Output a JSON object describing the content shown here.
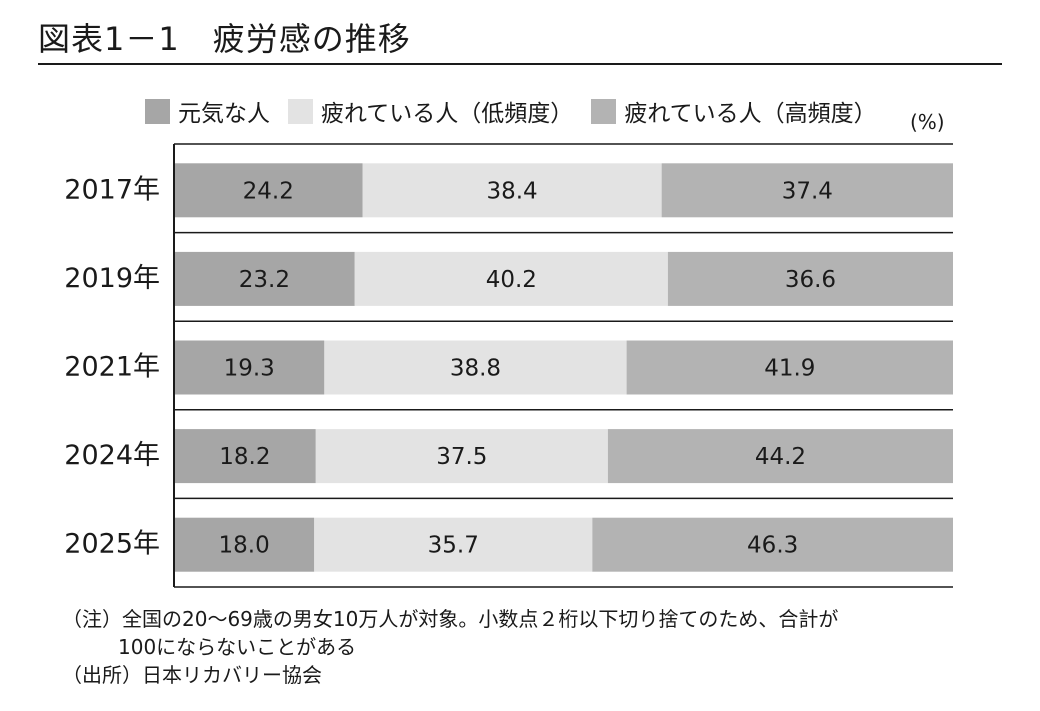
{
  "title": "図表1－1　疲労感の推移",
  "unit": "(%)",
  "colors": {
    "genki": "#a6a6a6",
    "low": "#e3e3e3",
    "high": "#b3b3b3",
    "axis": "#1a1a1a"
  },
  "chart_data": {
    "type": "bar",
    "orientation": "horizontal",
    "stacked": true,
    "percent": true,
    "categories": [
      "2017年",
      "2019年",
      "2021年",
      "2024年",
      "2025年"
    ],
    "series": [
      {
        "name": "元気な人",
        "values": [
          24.2,
          23.2,
          19.3,
          18.2,
          18.0
        ]
      },
      {
        "name": "疲れている人（低頻度）",
        "values": [
          38.4,
          40.2,
          38.8,
          37.5,
          35.7
        ]
      },
      {
        "name": "疲れている人（高頻度）",
        "values": [
          37.4,
          36.6,
          41.9,
          44.2,
          46.3
        ]
      }
    ],
    "xlim": [
      0,
      100
    ],
    "legend_position": "top",
    "grid": false
  },
  "notes": {
    "line1": "（注）全国の20～69歳の男女10万人が対象。小数点２桁以下切り捨てのため、合計が",
    "line2": "100にならないことがある",
    "line3": "（出所）日本リカバリー協会"
  }
}
